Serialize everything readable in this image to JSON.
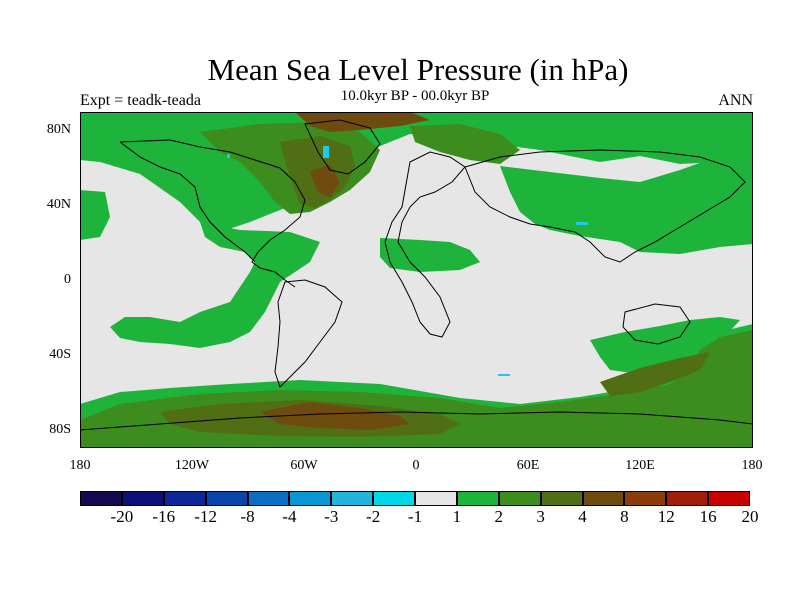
{
  "title": "Mean Sea Level Pressure (in hPa)",
  "experiment": "Expt = teadk-teada",
  "period": "10.0kyr BP - 00.0kyr BP",
  "season": "ANN",
  "lat_labels": [
    "80N",
    "40N",
    "0",
    "40S",
    "80S"
  ],
  "lon_labels": [
    "180",
    "120W",
    "60W",
    "0",
    "60E",
    "120E",
    "180"
  ],
  "colorbar": {
    "labels": [
      "-20",
      "-16",
      "-12",
      "-8",
      "-4",
      "-3",
      "-2",
      "-1",
      "1",
      "2",
      "3",
      "4",
      "8",
      "12",
      "16",
      "20"
    ],
    "colors": [
      "#140a50",
      "#0d0f78",
      "#0d2896",
      "#0a46aa",
      "#0a6ec3",
      "#0a96d2",
      "#23b4dc",
      "#00d7e6",
      "#e6e6e6",
      "#1eb43c",
      "#3c8c1e",
      "#506e14",
      "#6e4b0f",
      "#8c3c0a",
      "#a01e0a",
      "#c80000"
    ]
  },
  "palette": {
    "neutral": "#e6e6e6",
    "light_green": "#1eb43c",
    "green": "#3c8c1e",
    "olive": "#506e14",
    "brown": "#6e4b0f",
    "cyan": "#23c8e6",
    "coast": "#000000"
  }
}
